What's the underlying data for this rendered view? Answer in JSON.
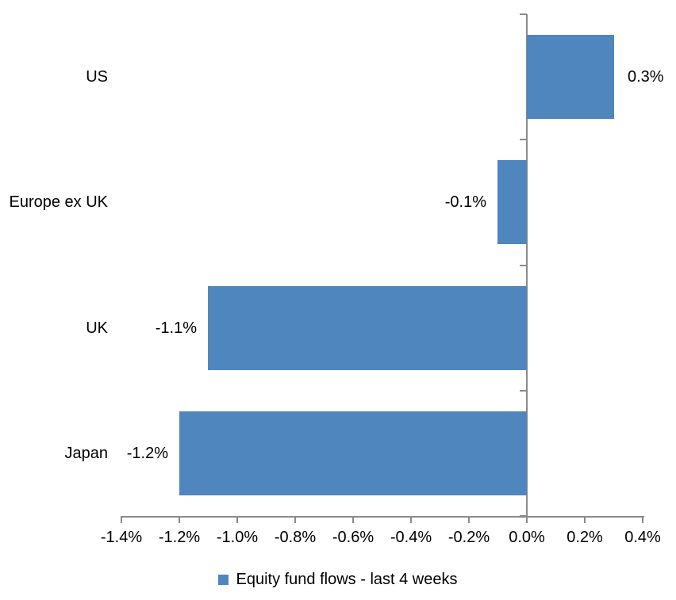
{
  "chart_data": {
    "type": "bar",
    "orientation": "horizontal",
    "title": "",
    "categories": [
      "US",
      "Europe ex UK",
      "UK",
      "Japan"
    ],
    "values": [
      0.3,
      -0.1,
      -1.1,
      -1.2
    ],
    "data_labels": [
      "0.3%",
      "-0.1%",
      "-1.1%",
      "-1.2%"
    ],
    "x_ticks": [
      {
        "value": -1.4,
        "label": "-1.4%"
      },
      {
        "value": -1.2,
        "label": "-1.2%"
      },
      {
        "value": -1.0,
        "label": "-1.0%"
      },
      {
        "value": -0.8,
        "label": "-0.8%"
      },
      {
        "value": -0.6,
        "label": "-0.6%"
      },
      {
        "value": -0.4,
        "label": "-0.4%"
      },
      {
        "value": -0.2,
        "label": "-0.2%"
      },
      {
        "value": 0.0,
        "label": "0.0%"
      },
      {
        "value": 0.2,
        "label": "0.2%"
      },
      {
        "value": 0.4,
        "label": "0.4%"
      }
    ],
    "xlim": [
      -1.4,
      0.4
    ],
    "grid": false,
    "legend": {
      "label": "Equity fund flows - last 4 weeks",
      "position": "bottom"
    },
    "colors": {
      "bar": "#4E86BD",
      "axis": "#8A8A8A",
      "text": "#000000",
      "background": "#FFFFFF"
    }
  }
}
